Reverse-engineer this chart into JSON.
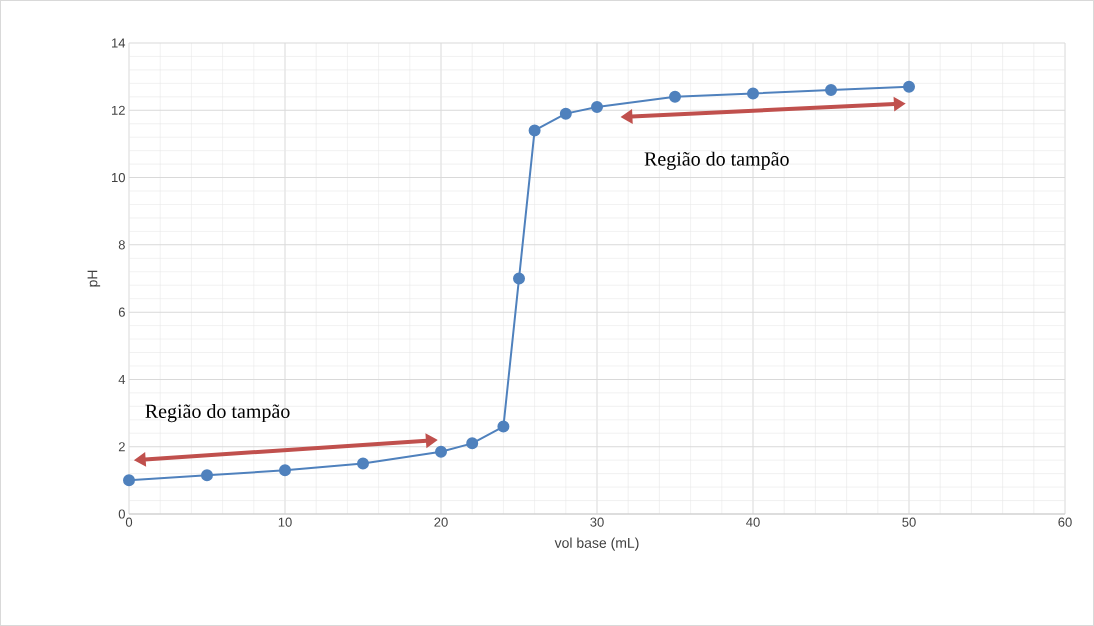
{
  "chart_data": {
    "type": "line",
    "xlabel": "vol base (mL)",
    "ylabel": "pH",
    "x": [
      0,
      5,
      10,
      15,
      20,
      22,
      24,
      25,
      26,
      28,
      30,
      35,
      40,
      45,
      50
    ],
    "series": [
      {
        "color": "#4f81bd",
        "values": [
          1.0,
          1.15,
          1.3,
          1.5,
          1.85,
          2.1,
          2.6,
          7.0,
          11.4,
          11.9,
          12.1,
          12.4,
          12.5,
          12.6,
          12.7
        ]
      }
    ],
    "xlim": [
      0,
      60
    ],
    "xticks": [
      0,
      10,
      20,
      30,
      40,
      50,
      60
    ],
    "ylim": [
      0,
      14
    ],
    "yticks": [
      0,
      2,
      4,
      6,
      8,
      10,
      12,
      14
    ],
    "grid": true,
    "marker": "circle",
    "line_style": "solid",
    "annotations": [
      "Região do tampão",
      "Região do tampão"
    ]
  }
}
